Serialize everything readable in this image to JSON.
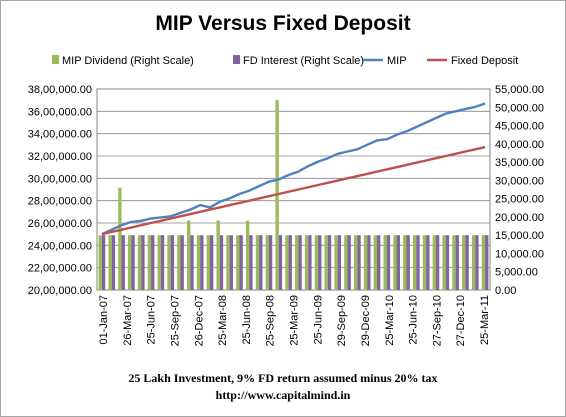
{
  "chart_data": {
    "type": "bar+line",
    "title": "MIP Versus Fixed Deposit",
    "legend": {
      "placement": "top",
      "entries": [
        {
          "name": "MIP Dividend (Right Scale)",
          "color": "#9bbb59",
          "kind": "bar"
        },
        {
          "name": "FD Interest (Right Scale)",
          "color": "#8064a2",
          "kind": "bar"
        },
        {
          "name": "MIP",
          "color": "#4f81bd",
          "kind": "line"
        },
        {
          "name": "Fixed Deposit",
          "color": "#c0504d",
          "kind": "line"
        }
      ]
    },
    "x_tick_labels": [
      "01-Jan-07",
      "26-Mar-07",
      "25-Jun-07",
      "25-Sep-07",
      "26-Dec-07",
      "25-Mar-08",
      "25-Jun-08",
      "25-Sep-08",
      "25-Mar-09",
      "25-Jun-09",
      "29-Sep-09",
      "29-Dec-09",
      "25-Mar-10",
      "25-Jun-10",
      "27-Sep-10",
      "27-Dec-10",
      "25-Mar-11"
    ],
    "left_axis": {
      "min": 2000000,
      "max": 3800000,
      "step": 200000,
      "tick_labels": [
        "20,00,000.00",
        "22,00,000.00",
        "24,00,000.00",
        "26,00,000.00",
        "28,00,000.00",
        "30,00,000.00",
        "32,00,000.00",
        "34,00,000.00",
        "36,00,000.00",
        "38,00,000.00"
      ]
    },
    "right_axis": {
      "min": 0,
      "max": 55000,
      "step": 5000,
      "tick_labels": [
        "0.00",
        "5,000.00",
        "10,000.00",
        "15,000.00",
        "20,000.00",
        "25,000.00",
        "30,000.00",
        "35,000.00",
        "40,000.00",
        "45,000.00",
        "50,000.00",
        "55,000.00"
      ]
    },
    "grid": true,
    "series": [
      {
        "name": "MIP",
        "axis": "left",
        "values": [
          2500000,
          2540000,
          2580000,
          2610000,
          2620000,
          2640000,
          2650000,
          2660000,
          2690000,
          2720000,
          2760000,
          2740000,
          2790000,
          2820000,
          2860000,
          2890000,
          2930000,
          2970000,
          2990000,
          3030000,
          3060000,
          3110000,
          3150000,
          3180000,
          3220000,
          3240000,
          3260000,
          3300000,
          3340000,
          3350000,
          3390000,
          3420000,
          3460000,
          3500000,
          3540000,
          3580000,
          3600000,
          3620000,
          3640000,
          3670000
        ]
      },
      {
        "name": "Fixed Deposit",
        "axis": "left",
        "values": [
          2500000,
          2520000,
          2540000,
          2560000,
          2580000,
          2600000,
          2620000,
          2640000,
          2660000,
          2680000,
          2700000,
          2720000,
          2740000,
          2760000,
          2780000,
          2800000,
          2820000,
          2840000,
          2860000,
          2880000,
          2900000,
          2920000,
          2940000,
          2960000,
          2980000,
          3000000,
          3020000,
          3040000,
          3060000,
          3080000,
          3100000,
          3120000,
          3140000,
          3160000,
          3180000,
          3200000,
          3220000,
          3240000,
          3260000,
          3280000
        ]
      },
      {
        "name": "MIP Dividend (Right Scale)",
        "axis": "right",
        "type": "bar",
        "values": [
          15000,
          15000,
          28000,
          15000,
          15000,
          15000,
          15000,
          15000,
          15000,
          19000,
          15000,
          15000,
          19000,
          15000,
          15000,
          19000,
          15000,
          15000,
          52000,
          15000,
          15000,
          15000,
          15000,
          15000,
          15000,
          15000,
          15000,
          15000,
          15000,
          15000,
          15000,
          15000,
          15000,
          15000,
          15000,
          15000,
          15000,
          15000,
          15000,
          15000
        ]
      },
      {
        "name": "FD Interest (Right Scale)",
        "axis": "right",
        "type": "bar",
        "values": [
          15000,
          15000,
          15000,
          15000,
          15000,
          15000,
          15000,
          15000,
          15000,
          15000,
          15000,
          15000,
          15000,
          15000,
          15000,
          15000,
          15000,
          15000,
          15000,
          15000,
          15000,
          15000,
          15000,
          15000,
          15000,
          15000,
          15000,
          15000,
          15000,
          15000,
          15000,
          15000,
          15000,
          15000,
          15000,
          15000,
          15000,
          15000,
          15000,
          15000
        ]
      }
    ]
  },
  "footer": {
    "line1": "25 Lakh Investment, 9% FD return assumed minus 20% tax",
    "line2": "http://www.capitalmind.in"
  }
}
